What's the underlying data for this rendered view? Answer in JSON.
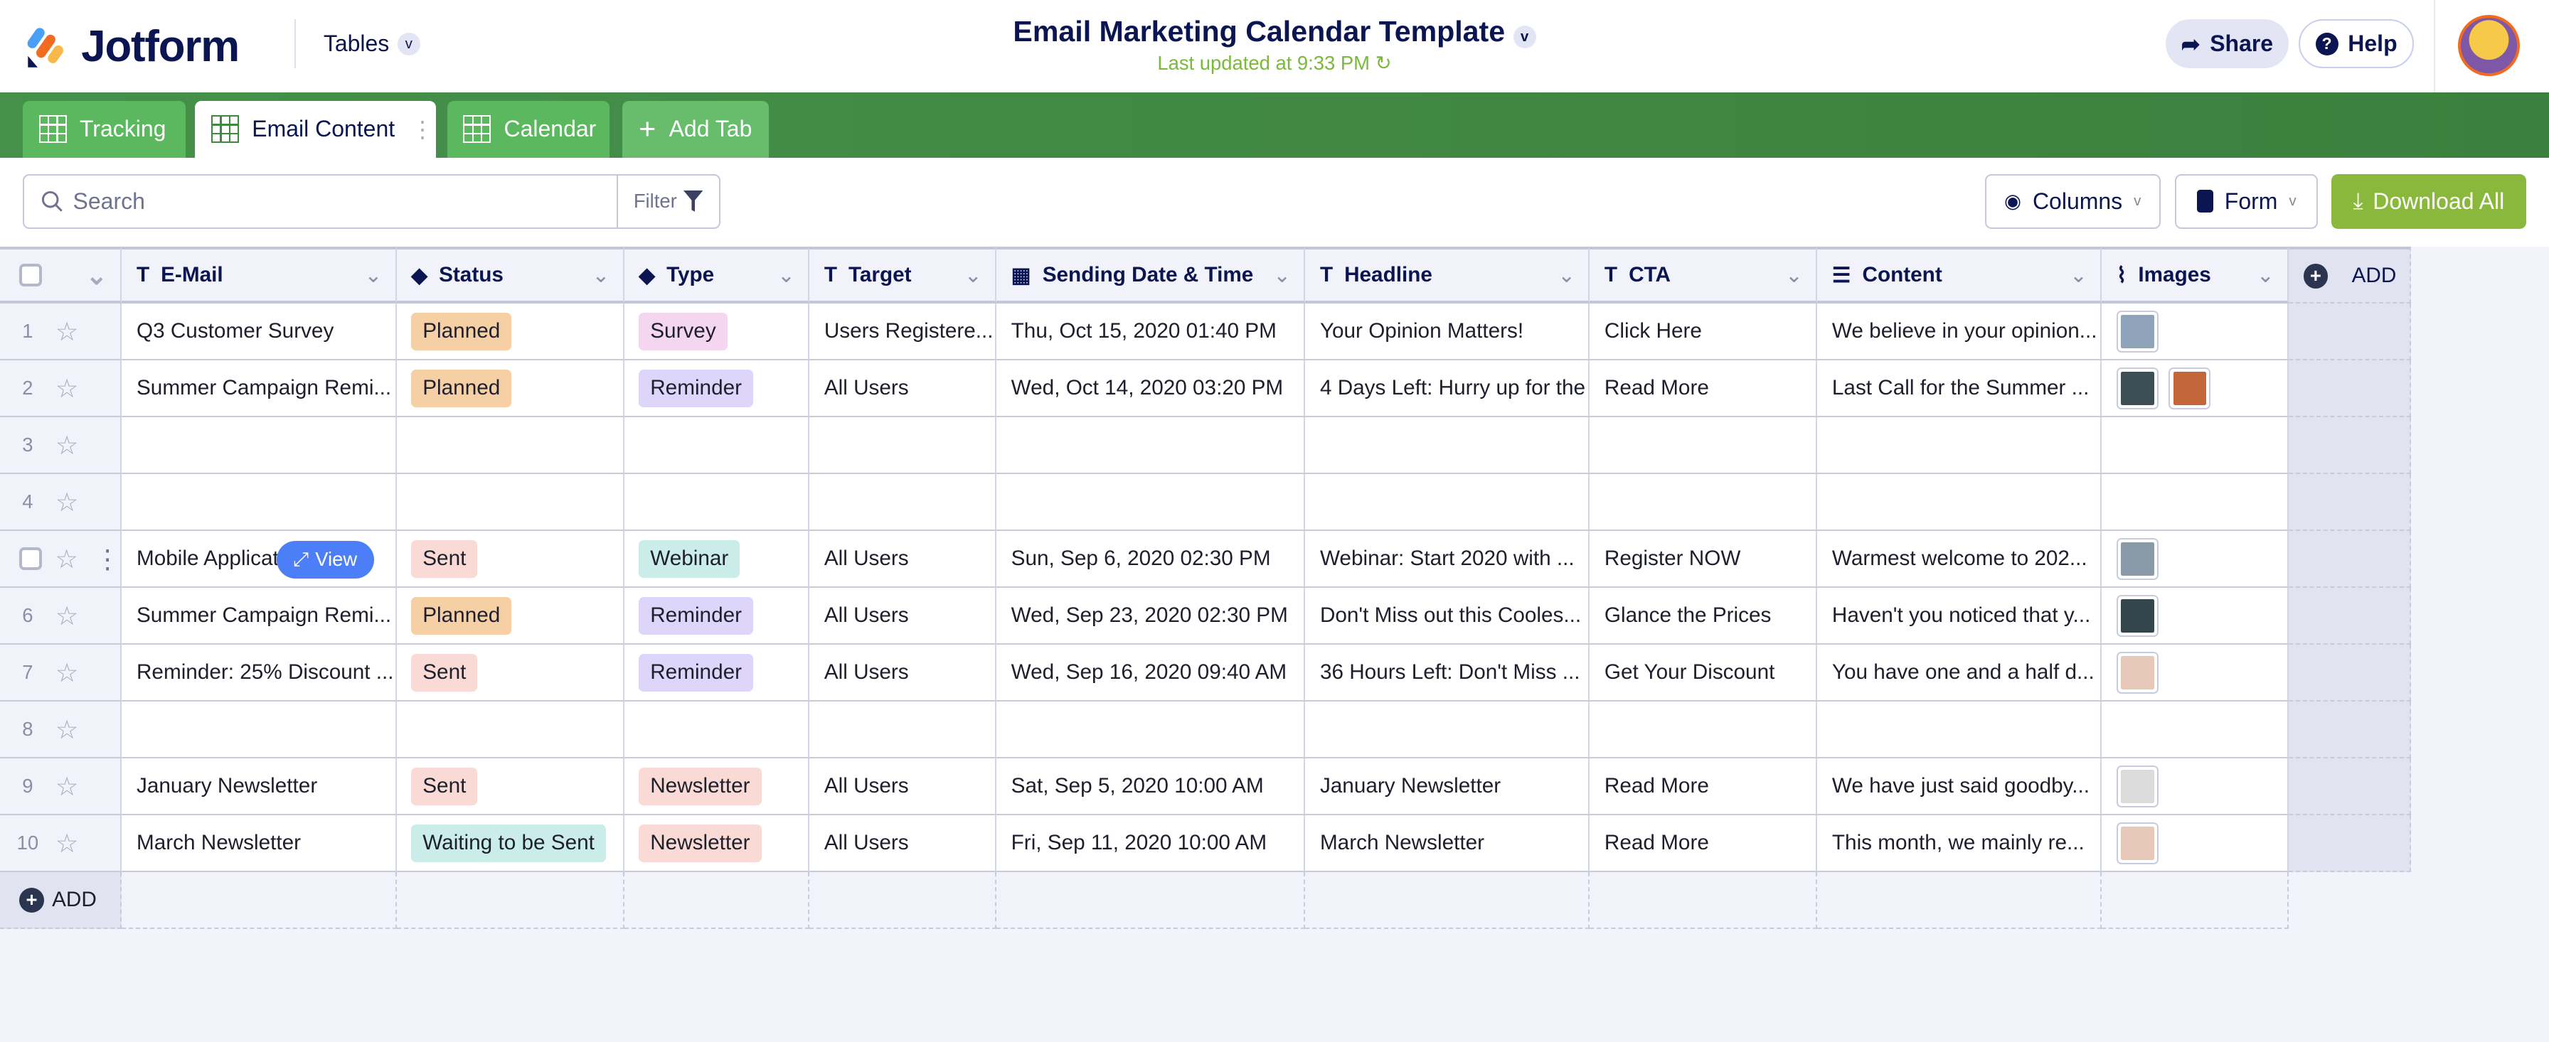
{
  "header": {
    "brand": "Jotform",
    "product": "Tables",
    "title": "Email Marketing Calendar Template",
    "updated": "Last updated at 9:33 PM",
    "share": "Share",
    "help": "Help"
  },
  "tabs": [
    {
      "label": "Tracking",
      "icon": "grid-icon"
    },
    {
      "label": "Email Content",
      "icon": "grid-icon",
      "active": true
    },
    {
      "label": "Calendar",
      "icon": "calendar-icon"
    },
    {
      "label": "Add Tab",
      "icon": "plus-icon"
    }
  ],
  "toolbar": {
    "search_placeholder": "Search",
    "filter": "Filter",
    "columns": "Columns",
    "form": "Form",
    "download": "Download All"
  },
  "columns": [
    {
      "label": "E-Mail",
      "icon": "T"
    },
    {
      "label": "Status",
      "icon": "tag"
    },
    {
      "label": "Type",
      "icon": "tag"
    },
    {
      "label": "Target",
      "icon": "T"
    },
    {
      "label": "Sending Date & Time",
      "icon": "calendar"
    },
    {
      "label": "Headline",
      "icon": "T"
    },
    {
      "label": "CTA",
      "icon": "T"
    },
    {
      "label": "Content",
      "icon": "longtext"
    },
    {
      "label": "Images",
      "icon": "paperclip"
    }
  ],
  "add_label": "ADD",
  "view_label": "View",
  "status_colors": {
    "Planned": "#f7cfa5",
    "Sent": "#f9dad4",
    "Waiting to be Sent": "#caede9"
  },
  "type_colors": {
    "Survey": "#f5d6f0",
    "Reminder": "#ddd5fa",
    "Webinar": "#caede9",
    "Newsletter": "#f9dad4"
  },
  "rows": [
    {
      "n": "1",
      "email": "Q3 Customer Survey",
      "status": "Planned",
      "type": "Survey",
      "target": "Users Registere...",
      "date": "Thu, Oct 15, 2020 01:40 PM",
      "headline": "Your Opinion Matters!",
      "cta": "Click Here",
      "content": "We believe in your opinion...",
      "images": [
        "#8fa3b8"
      ]
    },
    {
      "n": "2",
      "email": "Summer Campaign Remi...",
      "status": "Planned",
      "type": "Reminder",
      "target": "All Users",
      "date": "Wed, Oct 14, 2020 03:20 PM",
      "headline": "4 Days Left: Hurry up for the",
      "cta": "Read More",
      "content": "Last Call for the Summer ...",
      "images": [
        "#3d4f55",
        "#c4653a"
      ]
    },
    {
      "n": "3"
    },
    {
      "n": "4"
    },
    {
      "n": "5",
      "email": "Mobile Applicat...",
      "status": "Sent",
      "type": "Webinar",
      "target": "All Users",
      "date": "Sun, Sep 6, 2020 02:30 PM",
      "headline": "Webinar: Start 2020 with ...",
      "cta": "Register NOW",
      "content": "Warmest welcome to 202...",
      "images": [
        "#8a9aa8"
      ],
      "hover": true
    },
    {
      "n": "6",
      "email": "Summer Campaign Remi...",
      "status": "Planned",
      "type": "Reminder",
      "target": "All Users",
      "date": "Wed, Sep 23, 2020 02:30 PM",
      "headline": "Don't Miss out this Cooles...",
      "cta": "Glance the Prices",
      "content": "Haven't you noticed that y...",
      "images": [
        "#33464c"
      ]
    },
    {
      "n": "7",
      "email": "Reminder: 25% Discount ...",
      "status": "Sent",
      "type": "Reminder",
      "target": "All Users",
      "date": "Wed, Sep 16, 2020 09:40 AM",
      "headline": "36 Hours Left: Don't Miss ...",
      "cta": "Get Your Discount",
      "content": "You have one and a half d...",
      "images": [
        "#e8c8b8"
      ]
    },
    {
      "n": "8"
    },
    {
      "n": "9",
      "email": "January Newsletter",
      "status": "Sent",
      "type": "Newsletter",
      "target": "All Users",
      "date": "Sat, Sep 5, 2020 10:00 AM",
      "headline": "January Newsletter",
      "cta": "Read More",
      "content": "We have just said goodby...",
      "images": [
        "#dcdcdc"
      ]
    },
    {
      "n": "10",
      "email": "March Newsletter",
      "status": "Waiting to be Sent",
      "type": "Newsletter",
      "target": "All Users",
      "date": "Fri, Sep 11, 2020 10:00 AM",
      "headline": "March Newsletter",
      "cta": "Read More",
      "content": "This month, we mainly re...",
      "images": [
        "#e8c8b8"
      ]
    }
  ]
}
